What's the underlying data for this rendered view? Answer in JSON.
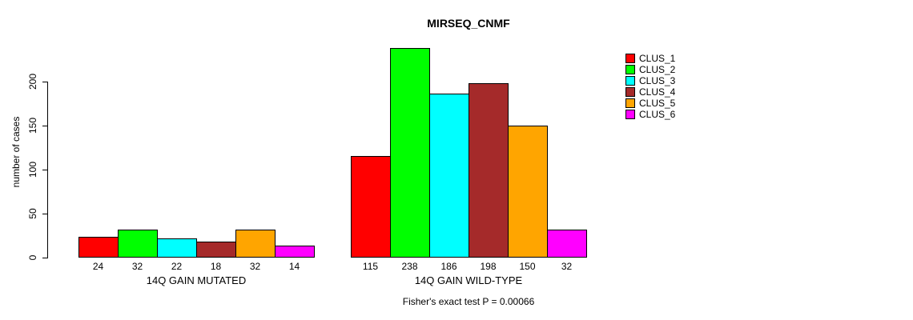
{
  "chart_data": {
    "type": "bar",
    "title": "MIRSEQ_CNMF",
    "ylabel": "number of cases",
    "xlabel": "",
    "caption": "Fisher's exact test P = 0.00066",
    "categories": [
      "14Q GAIN MUTATED",
      "14Q GAIN WILD-TYPE"
    ],
    "groups": [
      {
        "label": "14Q GAIN MUTATED",
        "values": [
          24,
          32,
          22,
          18,
          32,
          14
        ]
      },
      {
        "label": "14Q GAIN WILD-TYPE",
        "values": [
          115,
          238,
          186,
          198,
          150,
          32
        ]
      }
    ],
    "series_names": [
      "CLUS_1",
      "CLUS_2",
      "CLUS_3",
      "CLUS_4",
      "CLUS_5",
      "CLUS_6"
    ],
    "series_colors": [
      "#FF0000",
      "#00FF00",
      "#00FFFF",
      "#A52A2A",
      "#FFA500",
      "#FF00FF"
    ],
    "y_ticks": [
      0,
      50,
      100,
      150,
      200
    ],
    "ylim": [
      0,
      240
    ],
    "grid": false,
    "legend_position": "top-right",
    "bar_border_color": "#000000",
    "background_color": "#FFFFFF"
  }
}
